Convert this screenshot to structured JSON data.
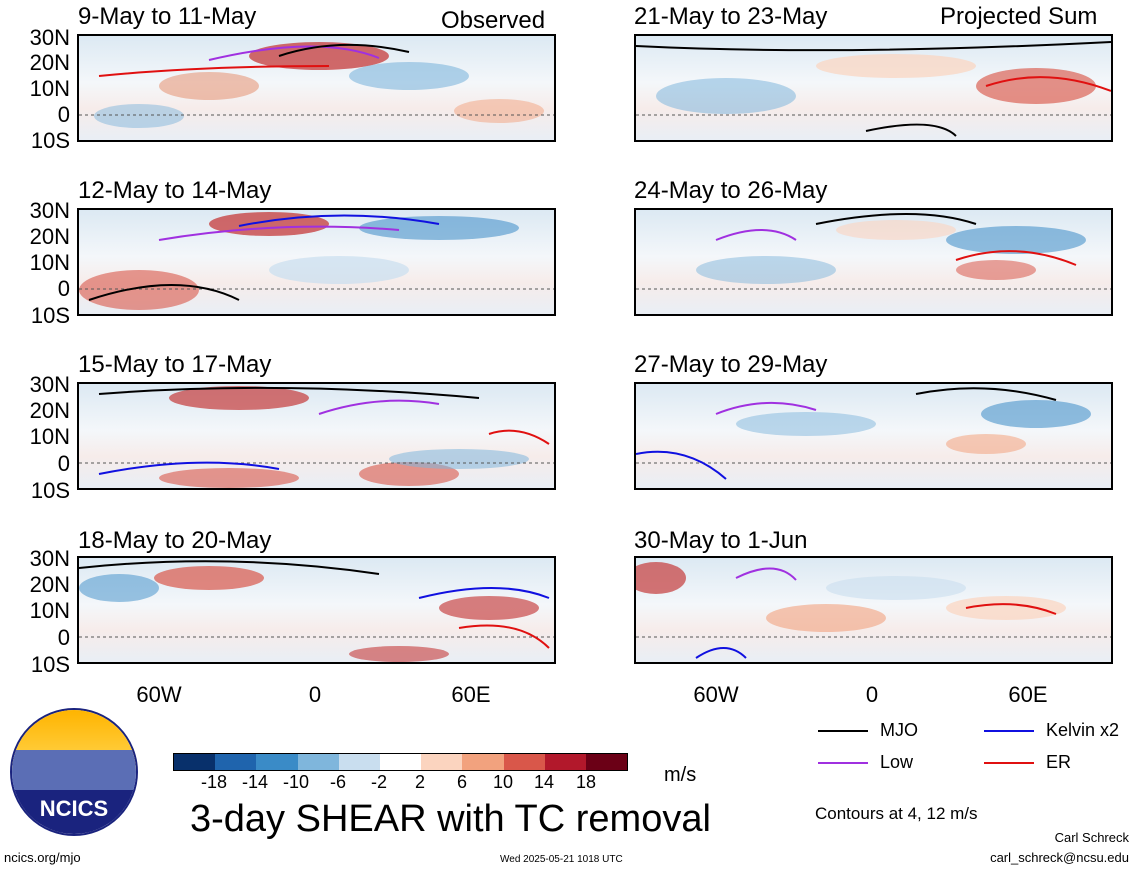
{
  "header": {
    "observed": "Observed",
    "projected": "Projected Sum"
  },
  "panels": [
    {
      "title": "9-May to 11-May"
    },
    {
      "title": "12-May to 14-May"
    },
    {
      "title": "15-May to 17-May"
    },
    {
      "title": "18-May to 20-May"
    },
    {
      "title": "21-May to 23-May"
    },
    {
      "title": "24-May to 26-May"
    },
    {
      "title": "27-May to 29-May"
    },
    {
      "title": "30-May to 1-Jun"
    }
  ],
  "lat_labels": [
    "30N",
    "20N",
    "10N",
    "0",
    "10S"
  ],
  "lon_labels": [
    "60W",
    "0",
    "60E"
  ],
  "legend": {
    "mjo": "MJO",
    "kelvin": "Kelvin x2",
    "low": "Low",
    "er": "ER",
    "colors": {
      "mjo": "#000000",
      "kelvin": "#1010e0",
      "low": "#a030e0",
      "er": "#e01010"
    }
  },
  "colorbar": {
    "labels": [
      "-18",
      "-14",
      "-10",
      "-6",
      "-2",
      "2",
      "6",
      "10",
      "14",
      "18"
    ],
    "colors": [
      "#08306b",
      "#1f64ad",
      "#3a8bc7",
      "#7fb6dc",
      "#c9deef",
      "#ffffff",
      "#fbd4bf",
      "#f2a27e",
      "#d9574a",
      "#b2182b",
      "#6b0016"
    ],
    "units": "m/s"
  },
  "main_title": "3-day SHEAR with TC removal",
  "contour_note": "Contours at 4, 12 m/s",
  "logo_text": "NCICS",
  "footer": {
    "site": "ncics.org/mjo",
    "timestamp": "Wed 2025-05-21 1018 UTC",
    "author": "Carl Schreck",
    "email": "carl_schreck@ncsu.edu"
  }
}
